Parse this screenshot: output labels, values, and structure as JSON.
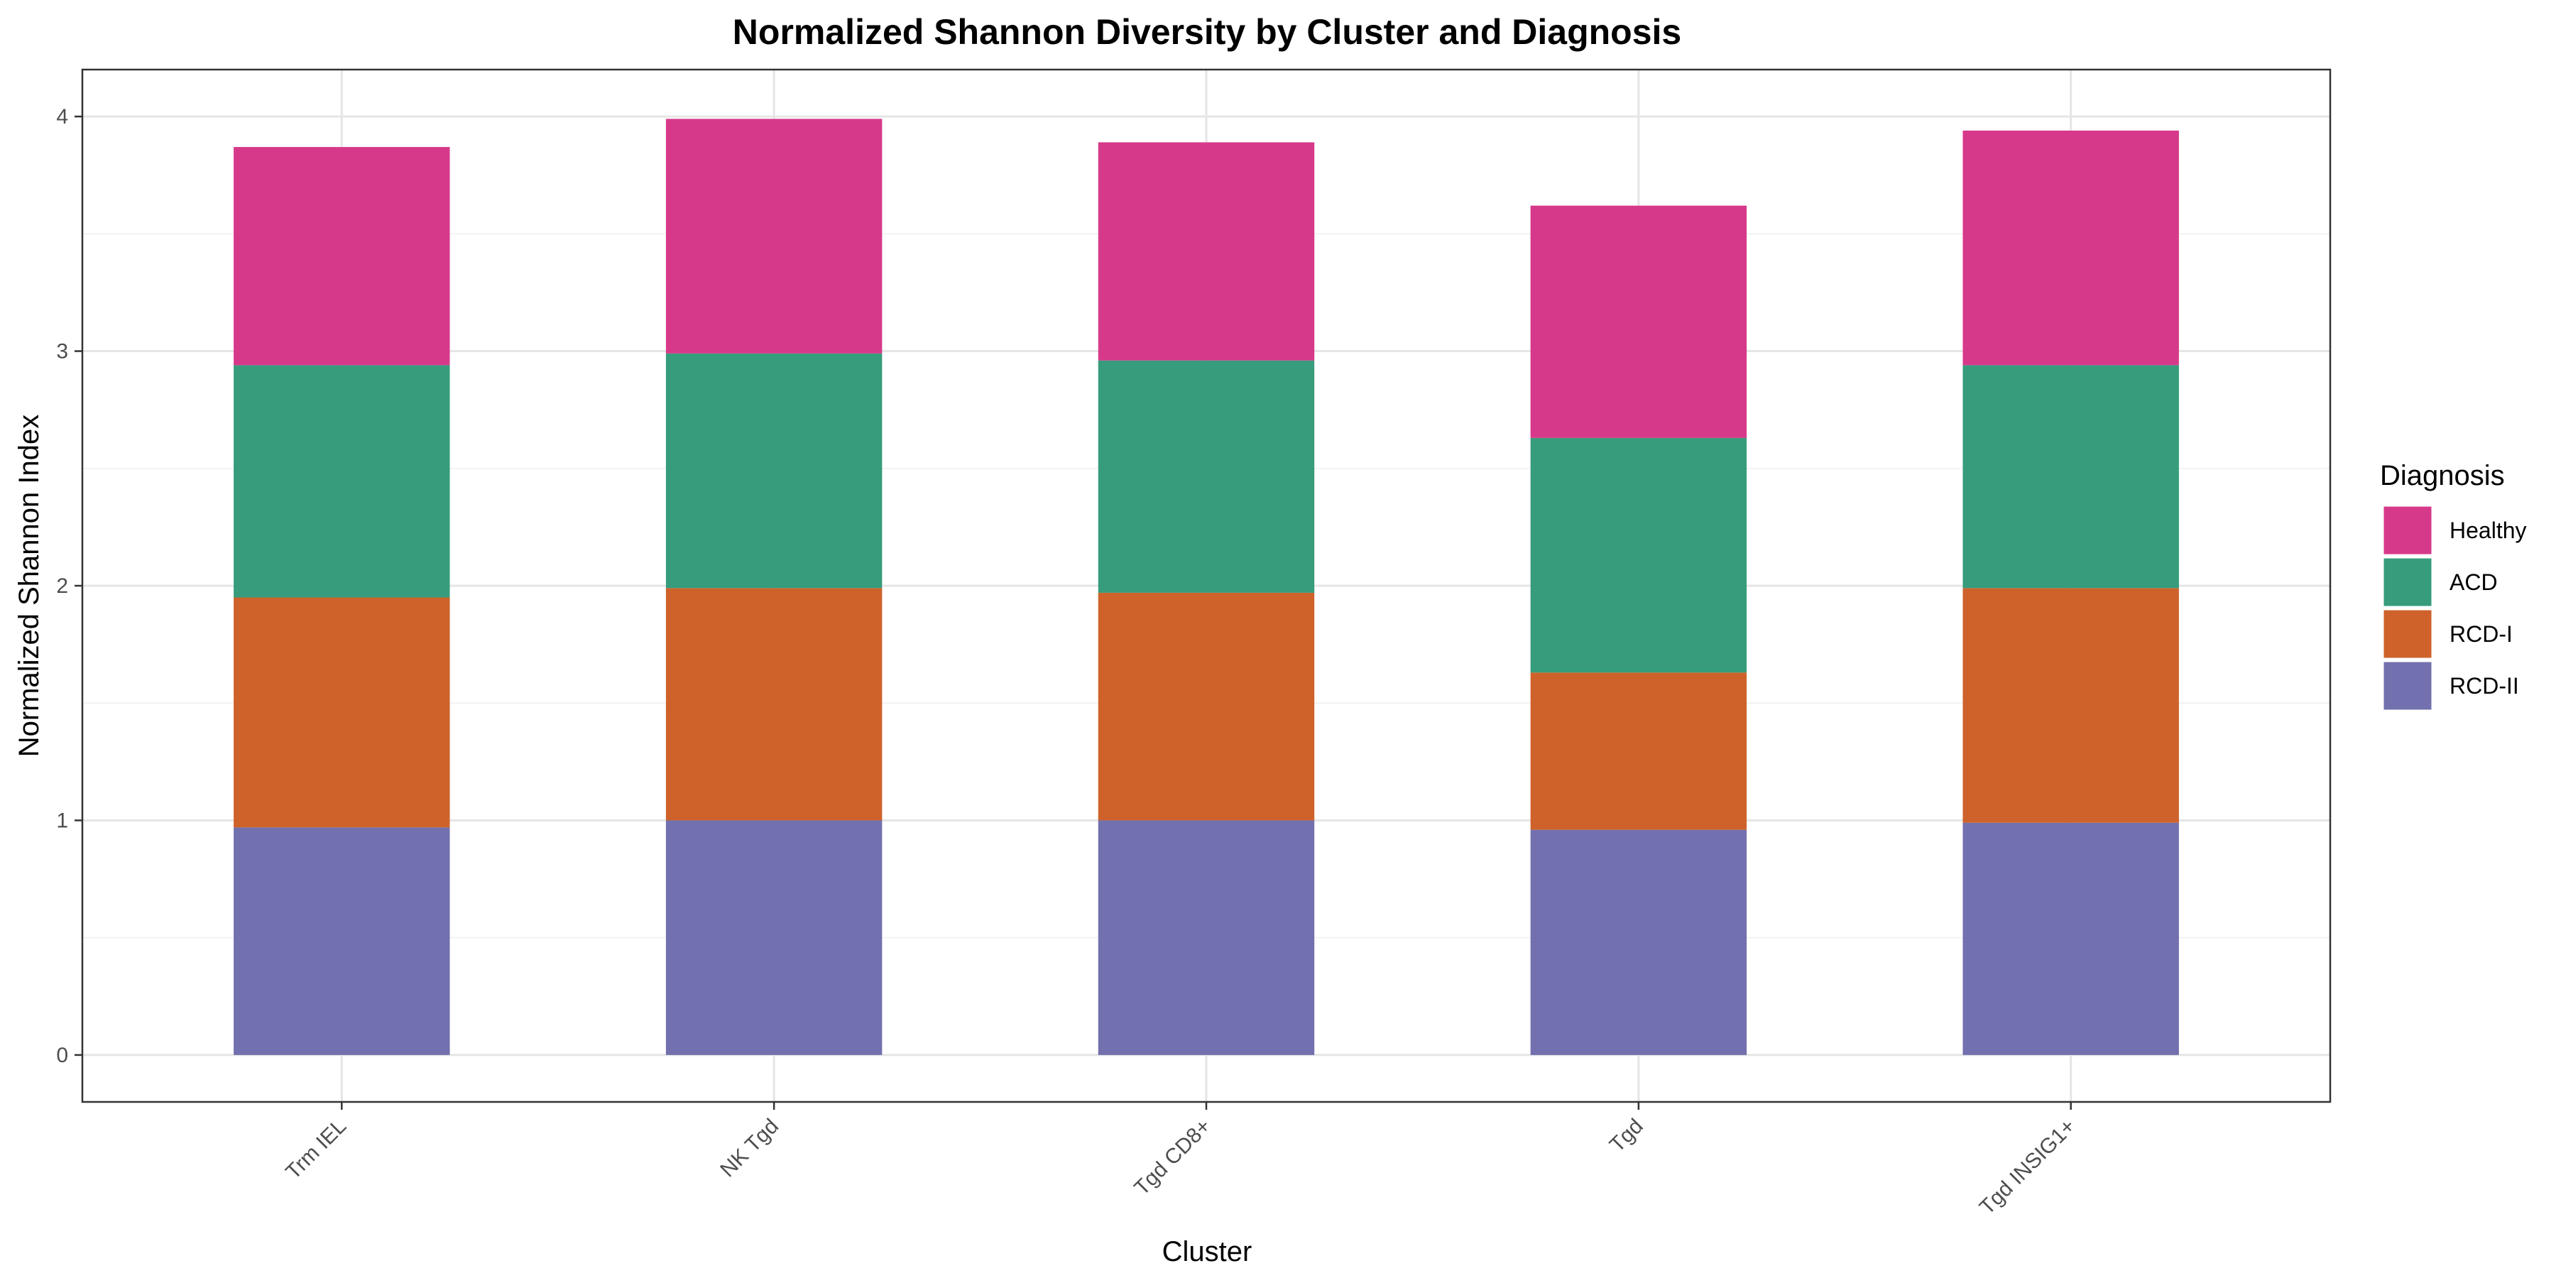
{
  "chart_data": {
    "type": "bar",
    "stacked": true,
    "title": "Normalized Shannon Diversity by Cluster and Diagnosis",
    "xlabel": "Cluster",
    "ylabel": "Normalized Shannon Index",
    "ylim": [
      -0.2,
      4.2
    ],
    "yticks": [
      "0",
      "1",
      "2",
      "3",
      "4"
    ],
    "grid": true,
    "legend_position": "right",
    "legend_title": "Diagnosis",
    "categories": [
      "Trm IEL",
      "NK Tgd",
      "Tgd CD8+",
      "Tgd",
      "Tgd INSIG1+"
    ],
    "series": [
      {
        "name": "RCD-II",
        "color": "#7270AE",
        "values": [
          0.97,
          1.0,
          1.0,
          0.96,
          0.99
        ]
      },
      {
        "name": "RCD-I",
        "color": "#CE622A",
        "values": [
          0.98,
          0.99,
          0.97,
          0.67,
          1.0
        ]
      },
      {
        "name": "ACD",
        "color": "#369C7C",
        "values": [
          0.99,
          1.0,
          0.99,
          1.0,
          0.95
        ]
      },
      {
        "name": "Healthy",
        "color": "#D7398A",
        "values": [
          0.93,
          1.0,
          0.93,
          0.99,
          1.0
        ]
      }
    ],
    "legend_order": [
      "Healthy",
      "ACD",
      "RCD-I",
      "RCD-II"
    ]
  }
}
